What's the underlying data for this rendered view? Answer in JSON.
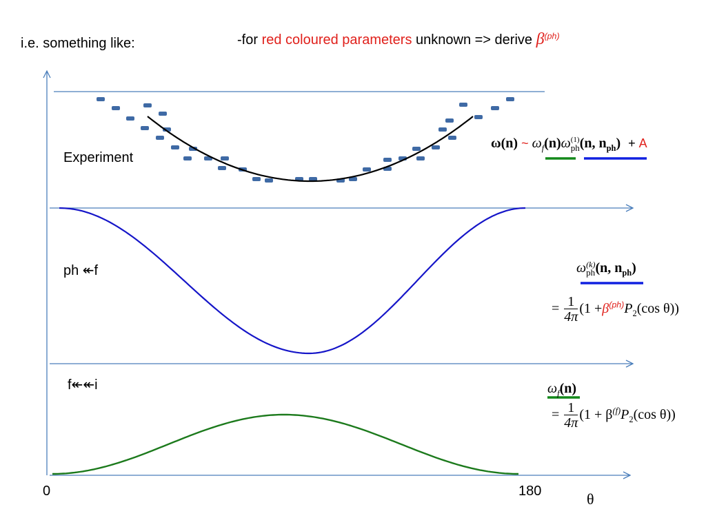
{
  "header": {
    "left_text": "i.e. something like:",
    "note_prefix": "-for ",
    "note_red": "red coloured parameters",
    "note_mid": " unknown => derive ",
    "beta_symbol": "β",
    "beta_sup": "(ph)"
  },
  "labels": {
    "experiment": "Experiment",
    "ph_f": "ph ↞f",
    "f_i": "f↞↞i",
    "x_start": "0",
    "x_end": "180",
    "theta": "θ"
  },
  "formula_top": {
    "omega_n": "ω(n)",
    "tilde": "~",
    "omega_f": "ω",
    "omega_f_sub": "f",
    "omega_f_arg": "(n)",
    "omega_ph": "ω",
    "omega_ph_sup": "(1)",
    "omega_ph_sub": "ph",
    "omega_ph_arg_bold": "(n, n",
    "omega_ph_arg_sub": "ph",
    "omega_ph_arg_close": ")",
    "plus_a_plus": "+ ",
    "plus_a_letter": "A"
  },
  "formula_ph": {
    "omega": "ω",
    "sup": "(k)",
    "sub": "ph",
    "arg_bold": "(n, n",
    "arg_sub": "ph",
    "arg_close": ")",
    "equals": "=",
    "num": "1",
    "den": "4π",
    "open": "(1 +",
    "beta": "β",
    "beta_sup": "(ph)",
    "tail": "P",
    "tail_sub": "2",
    "tail_rest": "(cos θ))"
  },
  "formula_f": {
    "omega": "ω",
    "sub": "f",
    "arg": "(n)",
    "equals": "=",
    "num": "1",
    "den": "4π",
    "open": "(1 + β",
    "beta_sup": "(f)",
    "tail": "P",
    "tail_sub": "2",
    "tail_rest": "(cos θ))"
  },
  "colors": {
    "axis": "#4a7ebb",
    "blue_curve": "#1515c8",
    "green_curve": "#1c7a1c",
    "markers": "#3f6aa5",
    "red": "#e0201b",
    "underline_green": "#13891a",
    "underline_blue": "#1020e0"
  }
}
